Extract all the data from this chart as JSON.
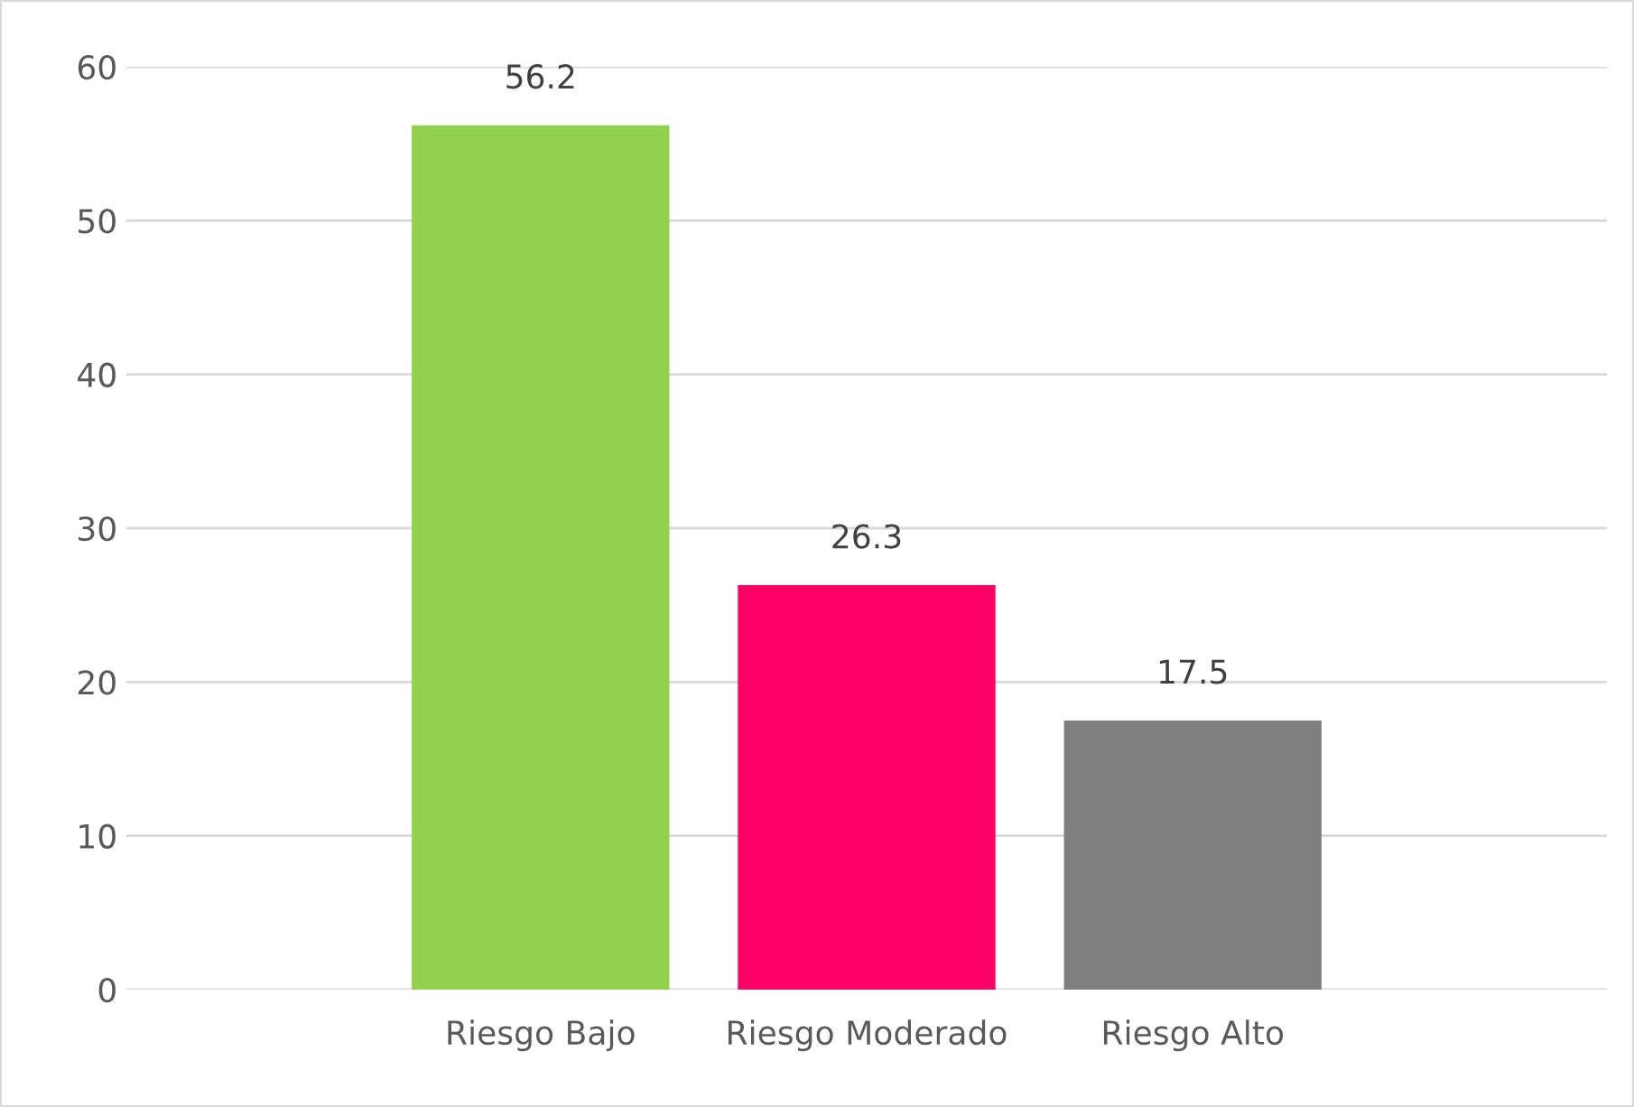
{
  "chart_data": {
    "type": "bar",
    "categories": [
      "Riesgo Bajo",
      "Riesgo Moderado",
      "Riesgo Alto"
    ],
    "values": [
      56.2,
      26.3,
      17.5
    ],
    "colors": [
      "#92d050",
      "#ff0066",
      "#7f7f7f"
    ],
    "ylim": [
      0,
      60
    ],
    "yticks": [
      0,
      10,
      20,
      30,
      40,
      50,
      60
    ],
    "grid": "y",
    "data_labels": true,
    "legend": false
  }
}
